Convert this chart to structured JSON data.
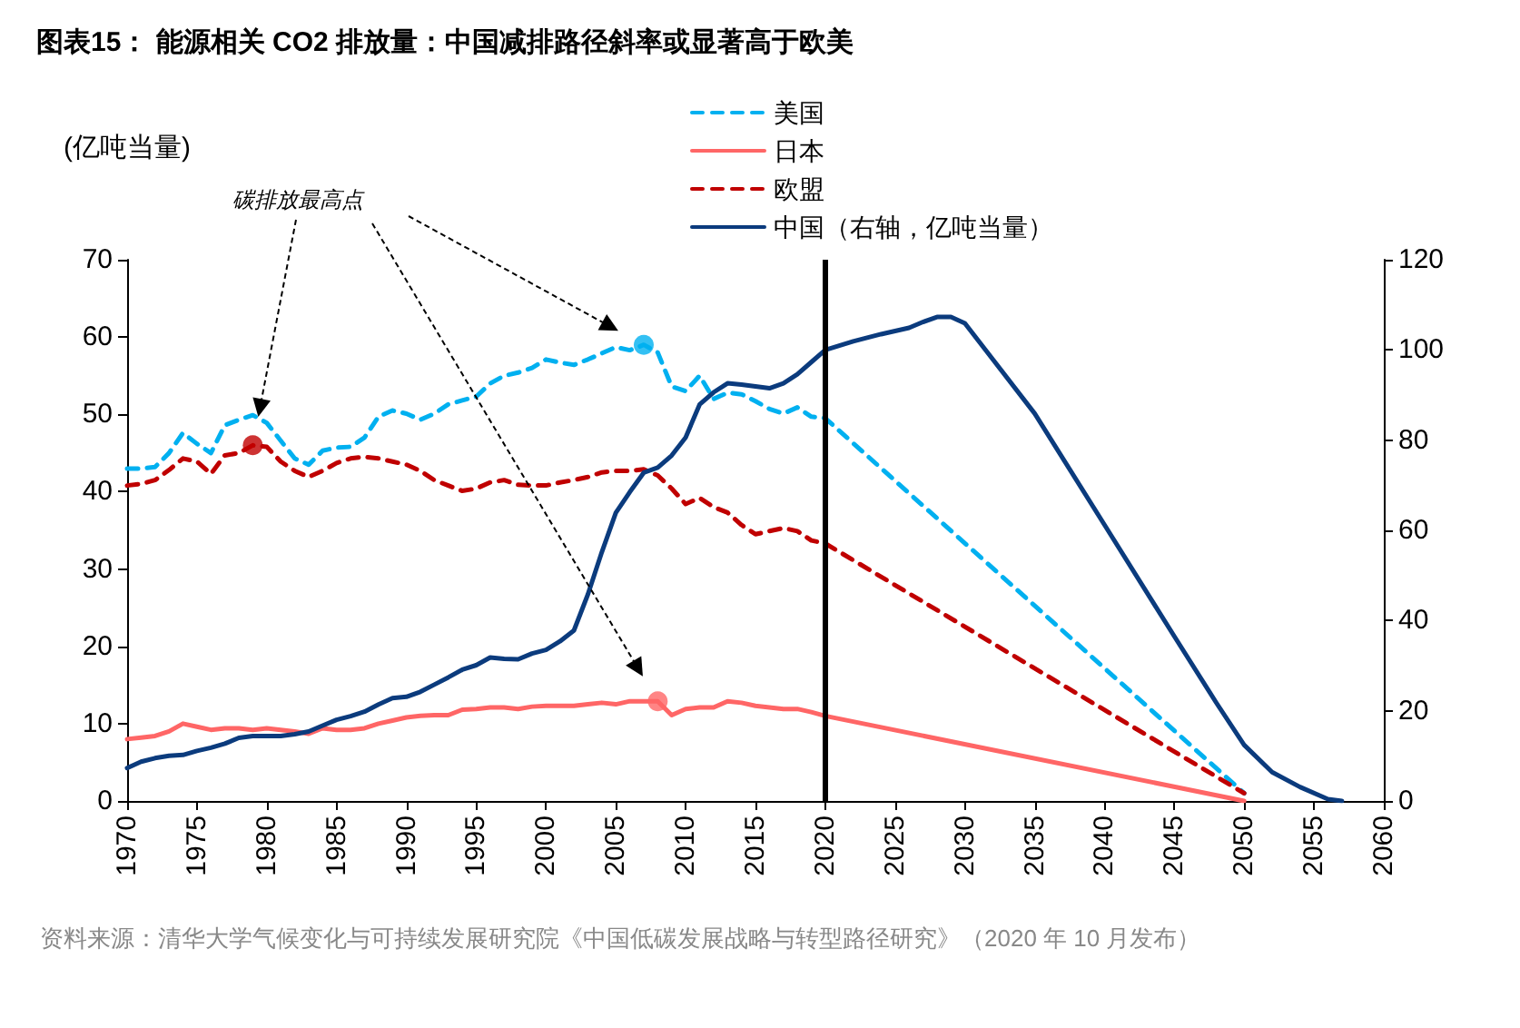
{
  "chart_data": {
    "type": "line",
    "title": "图表15： 能源相关 CO2 排放量：中国减排路径斜率或显著高于欧美",
    "ylabel": "(亿吨当量)",
    "annotations": [
      "碳排放最高点",
      "资料来源：清华大学气候变化与可持续发展研究院《中国低碳发展战略与转型路径研究》（2020 年 10 月发布）"
    ],
    "xlim": [
      1970,
      2060
    ],
    "xticks": [
      1970,
      1975,
      1980,
      1985,
      1990,
      1995,
      2000,
      2005,
      2010,
      2015,
      2020,
      2025,
      2030,
      2035,
      2040,
      2045,
      2050,
      2055,
      2060
    ],
    "ylim": [
      0,
      70
    ],
    "yticks": [
      0,
      10,
      20,
      30,
      40,
      50,
      60,
      70
    ],
    "y2lim": [
      0,
      120
    ],
    "y2ticks": [
      0,
      20,
      40,
      60,
      80,
      100,
      120
    ],
    "grid": false,
    "legend": "top",
    "marker": "none",
    "ref_lines": [
      {
        "axis": "x",
        "value": 2020,
        "color": "#000000"
      }
    ],
    "series": [
      {
        "name": "美国",
        "color": "#00b0f0",
        "line_style": "dashed",
        "x": [
          1970,
          1971,
          1972,
          1973,
          1974,
          1975,
          1976,
          1977,
          1978,
          1979,
          1980,
          1981,
          1982,
          1983,
          1984,
          1985,
          1986,
          1987,
          1988,
          1989,
          1990,
          1991,
          1992,
          1993,
          1994,
          1995,
          1996,
          1997,
          1998,
          1999,
          2000,
          2001,
          2002,
          2003,
          2004,
          2005,
          2006,
          2007,
          2008,
          2009,
          2010,
          2011,
          2012,
          2013,
          2014,
          2015,
          2016,
          2017,
          2018,
          2019,
          2020,
          2050
        ],
        "values": [
          43,
          43,
          43.2,
          45,
          47.6,
          46.2,
          45,
          48.6,
          49.3,
          49.9,
          48.9,
          46.6,
          44.3,
          43.5,
          45.3,
          45.7,
          45.8,
          47,
          49.7,
          50.5,
          50.1,
          49.3,
          50.1,
          51.3,
          51.8,
          52.3,
          54,
          55,
          55.4,
          56,
          57.1,
          56.7,
          56.4,
          57.1,
          57.9,
          58.7,
          58.3,
          59,
          58,
          53.6,
          53,
          55,
          52,
          52.8,
          52.6,
          51.7,
          50.7,
          50.1,
          50.9,
          49.7,
          49.5,
          1
        ]
      },
      {
        "name": "日本",
        "color": "#ff6666",
        "line_style": "solid",
        "x": [
          1970,
          1971,
          1972,
          1973,
          1974,
          1975,
          1976,
          1977,
          1978,
          1979,
          1980,
          1981,
          1982,
          1983,
          1984,
          1985,
          1986,
          1987,
          1988,
          1989,
          1990,
          1991,
          1992,
          1993,
          1994,
          1995,
          1996,
          1997,
          1998,
          1999,
          2000,
          2001,
          2002,
          2003,
          2004,
          2005,
          2006,
          2007,
          2008,
          2009,
          2010,
          2011,
          2012,
          2013,
          2014,
          2015,
          2016,
          2017,
          2018,
          2019,
          2020,
          2050
        ],
        "values": [
          8,
          8.2,
          8.4,
          9,
          10,
          9.6,
          9.2,
          9.4,
          9.4,
          9.2,
          9.4,
          9.2,
          9,
          8.7,
          9.4,
          9.2,
          9.2,
          9.4,
          10,
          10.4,
          10.8,
          11,
          11.1,
          11.1,
          11.8,
          11.9,
          12.1,
          12.1,
          11.9,
          12.2,
          12.3,
          12.3,
          12.3,
          12.5,
          12.7,
          12.5,
          12.9,
          12.9,
          12.9,
          11.1,
          11.9,
          12.1,
          12.1,
          12.9,
          12.7,
          12.3,
          12.1,
          11.9,
          11.9,
          11.5,
          11,
          0
        ]
      },
      {
        "name": "欧盟",
        "color": "#c00000",
        "line_style": "dashed",
        "x": [
          1970,
          1971,
          1972,
          1973,
          1974,
          1975,
          1976,
          1977,
          1978,
          1979,
          1980,
          1981,
          1982,
          1983,
          1984,
          1985,
          1986,
          1987,
          1988,
          1989,
          1990,
          1991,
          1992,
          1993,
          1994,
          1995,
          1996,
          1997,
          1998,
          1999,
          2000,
          2001,
          2002,
          2003,
          2004,
          2005,
          2006,
          2007,
          2008,
          2009,
          2010,
          2011,
          2012,
          2013,
          2014,
          2015,
          2016,
          2017,
          2018,
          2019,
          2020,
          2050
        ],
        "values": [
          40.8,
          41,
          41.5,
          42.8,
          44.3,
          43.9,
          42.3,
          44.7,
          45,
          46,
          45.8,
          43.9,
          42.7,
          41.9,
          42.7,
          43.7,
          44.3,
          44.5,
          44.3,
          43.9,
          43.5,
          42.7,
          41.5,
          40.8,
          40.1,
          40.4,
          41.2,
          41.5,
          40.9,
          40.8,
          40.8,
          41.2,
          41.5,
          41.9,
          42.5,
          42.7,
          42.7,
          42.9,
          42.1,
          40.4,
          38.4,
          39.2,
          38,
          37.3,
          35.7,
          34.5,
          34.9,
          35.3,
          34.9,
          33.7,
          33.3,
          1
        ]
      },
      {
        "name": "中国（右轴，亿吨当量）",
        "color": "#0b3b7d",
        "line_style": "solid",
        "axis": "y2",
        "x": [
          1970,
          1971,
          1972,
          1973,
          1974,
          1975,
          1976,
          1977,
          1978,
          1979,
          1980,
          1981,
          1982,
          1983,
          1984,
          1985,
          1986,
          1987,
          1988,
          1989,
          1990,
          1991,
          1992,
          1993,
          1994,
          1995,
          1996,
          1997,
          1998,
          1999,
          2000,
          2001,
          2002,
          2003,
          2004,
          2005,
          2006,
          2007,
          2008,
          2009,
          2010,
          2011,
          2012,
          2013,
          2014,
          2015,
          2016,
          2017,
          2018,
          2019,
          2020,
          2022,
          2024,
          2026,
          2027,
          2028,
          2029,
          2030,
          2032,
          2035,
          2040,
          2045,
          2048,
          2050,
          2052,
          2054,
          2056,
          2057
        ],
        "values": [
          7.3,
          8.7,
          9.5,
          10,
          10.2,
          11.1,
          11.8,
          12.7,
          14,
          14.4,
          14.4,
          14.4,
          14.8,
          15.4,
          16.7,
          18,
          18.8,
          19.8,
          21.4,
          22.8,
          23.1,
          24.2,
          25.8,
          27.4,
          29.1,
          30.1,
          31.8,
          31.5,
          31.4,
          32.7,
          33.5,
          35.4,
          37.8,
          45.8,
          55.2,
          63.9,
          68.5,
          72.8,
          73.9,
          76.6,
          80.6,
          87.9,
          90.6,
          92.6,
          92.3,
          91.9,
          91.5,
          92.6,
          94.6,
          97.3,
          100,
          101.9,
          103.5,
          104.9,
          106.2,
          107.3,
          107.3,
          105.9,
          97.9,
          85.9,
          61.2,
          36.5,
          21.8,
          12.4,
          6.4,
          3.1,
          0.4,
          0
        ]
      },
      {
        "type": "scatter",
        "marker": "circle",
        "x": [
          1979,
          2007,
          2008
        ],
        "values": [
          46,
          59,
          12.9
        ],
        "colors": [
          "#c00000",
          "#00b0f0",
          "#ff6666"
        ]
      }
    ]
  }
}
